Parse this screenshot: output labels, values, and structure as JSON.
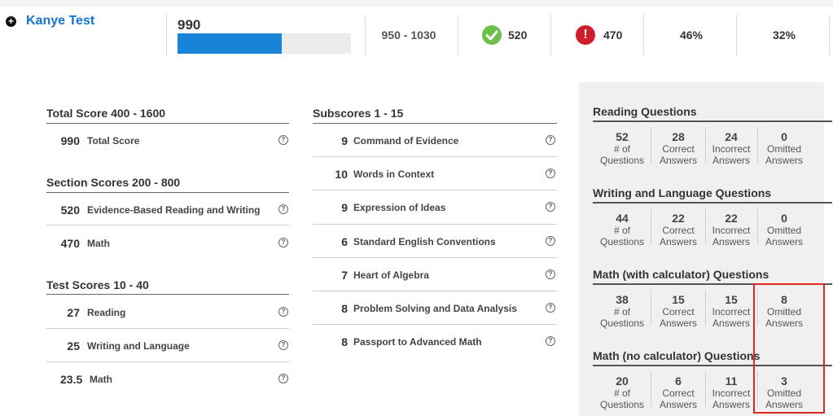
{
  "header": {
    "test_name": "Kanye Test",
    "total": "990",
    "progress_fraction": 0.6,
    "range": "950 - 1030",
    "correct": "520",
    "incorrect": "470",
    "percent_a": "46%",
    "percent_b": "32%",
    "error_glyph": "!"
  },
  "left": {
    "total_heading": "Total Score 400 - 1600",
    "total_row": {
      "num": "990",
      "label": "Total Score"
    },
    "section_heading": "Section Scores 200 - 800",
    "section_rows": [
      {
        "num": "520",
        "label": "Evidence-Based Reading and Writing"
      },
      {
        "num": "470",
        "label": "Math"
      }
    ],
    "test_heading": "Test Scores 10 - 40",
    "test_rows": [
      {
        "num": "27",
        "label": "Reading"
      },
      {
        "num": "25",
        "label": "Writing and Language"
      },
      {
        "num": "23.5",
        "label": "Math"
      }
    ]
  },
  "middle": {
    "heading": "Subscores 1 - 15",
    "rows": [
      {
        "num": "9",
        "label": "Command of Evidence"
      },
      {
        "num": "10",
        "label": "Words in Context"
      },
      {
        "num": "9",
        "label": "Expression of Ideas"
      },
      {
        "num": "6",
        "label": "Standard English Conventions"
      },
      {
        "num": "7",
        "label": "Heart of Algebra"
      },
      {
        "num": "8",
        "label": "Problem Solving and Data Analysis"
      },
      {
        "num": "8",
        "label": "Passport to Advanced Math"
      }
    ]
  },
  "help_glyph": "?",
  "plus_glyph": "+",
  "stat_labels": {
    "questions_1": "# of",
    "questions_2": "Questions",
    "correct_1": "Correct",
    "correct_2": "Answers",
    "incorrect_1": "Incorrect",
    "incorrect_2": "Answers",
    "omitted_1": "Omitted",
    "omitted_2": "Answers"
  },
  "panel": {
    "groups": [
      {
        "title": "Reading Questions",
        "questions": "52",
        "correct": "28",
        "incorrect": "24",
        "omitted": "0"
      },
      {
        "title": "Writing and Language Questions",
        "questions": "44",
        "correct": "22",
        "incorrect": "22",
        "omitted": "0"
      },
      {
        "title": "Math (with calculator) Questions",
        "questions": "38",
        "correct": "15",
        "incorrect": "15",
        "omitted": "8"
      },
      {
        "title": "Math (no calculator) Questions",
        "questions": "20",
        "correct": "6",
        "incorrect": "11",
        "omitted": "3"
      }
    ]
  },
  "colors": {
    "link": "#1273d6",
    "progress": "#1883d7",
    "correct": "#6cc04a",
    "incorrect": "#d01e2a",
    "highlight": "#e0291a"
  }
}
